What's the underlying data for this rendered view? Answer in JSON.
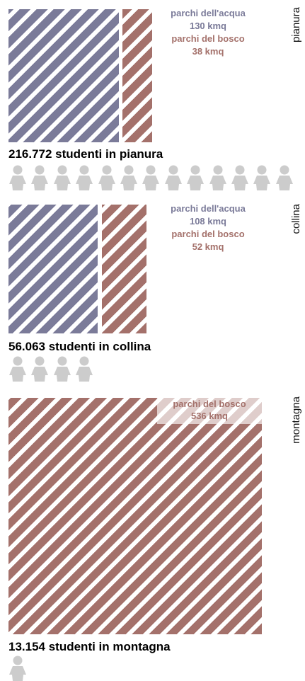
{
  "colors": {
    "acqua": "#7b7b99",
    "bosco": "#a4716b",
    "person": "#cccccc"
  },
  "chart_data": [
    {
      "type": "bar",
      "zone": "pianura",
      "series": [
        {
          "name": "parchi dell'acqua",
          "value": 130,
          "unit": "kmq",
          "label": "130 kmq"
        },
        {
          "name": "parchi del bosco",
          "value": 38,
          "unit": "kmq",
          "label": "38 kmq"
        }
      ],
      "students": 216772,
      "students_label": "216.772 studenti in pianura",
      "person_icons": 13
    },
    {
      "type": "bar",
      "zone": "collina",
      "series": [
        {
          "name": "parchi dell'acqua",
          "value": 108,
          "unit": "kmq",
          "label": "108 kmq"
        },
        {
          "name": "parchi del bosco",
          "value": 52,
          "unit": "kmq",
          "label": "52 kmq"
        }
      ],
      "students": 56063,
      "students_label": "56.063 studenti in collina",
      "person_icons": 4
    },
    {
      "type": "bar",
      "zone": "montagna",
      "series": [
        {
          "name": "parchi del bosco",
          "value": 536,
          "unit": "kmq",
          "label": "536 kmq"
        }
      ],
      "students": 13154,
      "students_label": "13.154 studenti in montagna",
      "person_icons": 1
    }
  ]
}
